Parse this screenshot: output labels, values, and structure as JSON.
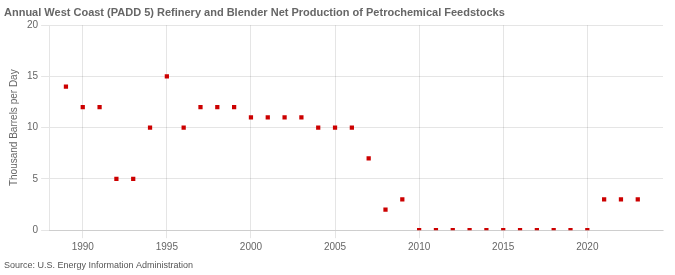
{
  "chart_data": {
    "type": "scatter",
    "title": "Annual West Coast (PADD 5) Refinery and Blender Net Production of Petrochemical Feedstocks",
    "ylabel": "Thousand Barrels per Day",
    "annotation": "Source: U.S. Energy Information Administration",
    "x": [
      1989,
      1990,
      1991,
      1992,
      1993,
      1994,
      1995,
      1996,
      1997,
      1998,
      1999,
      2000,
      2001,
      2002,
      2003,
      2004,
      2005,
      2006,
      2007,
      2008,
      2009,
      2010,
      2011,
      2012,
      2013,
      2014,
      2015,
      2016,
      2017,
      2018,
      2019,
      2020,
      2021,
      2022,
      2023
    ],
    "values": [
      14.0,
      12.0,
      12.0,
      5.0,
      5.0,
      10.0,
      15.0,
      10.0,
      12.0,
      12.0,
      12.0,
      11.0,
      11.0,
      11.0,
      11.0,
      10.0,
      10.0,
      10.0,
      7.0,
      2.0,
      3.0,
      0.0,
      0.0,
      0.0,
      0.0,
      0.0,
      0.0,
      0.0,
      0.0,
      0.0,
      0.0,
      0.0,
      3.0,
      3.0,
      3.0
    ],
    "color": "#cc0000",
    "marker": "square",
    "xlim": [
      1988.0,
      2024.5
    ],
    "xticks": [
      1990,
      1995,
      2000,
      2005,
      2010,
      2015,
      2020
    ],
    "ylim": [
      0,
      20
    ],
    "yticks": [
      0,
      5,
      10,
      15,
      20
    ],
    "grid": true
  }
}
